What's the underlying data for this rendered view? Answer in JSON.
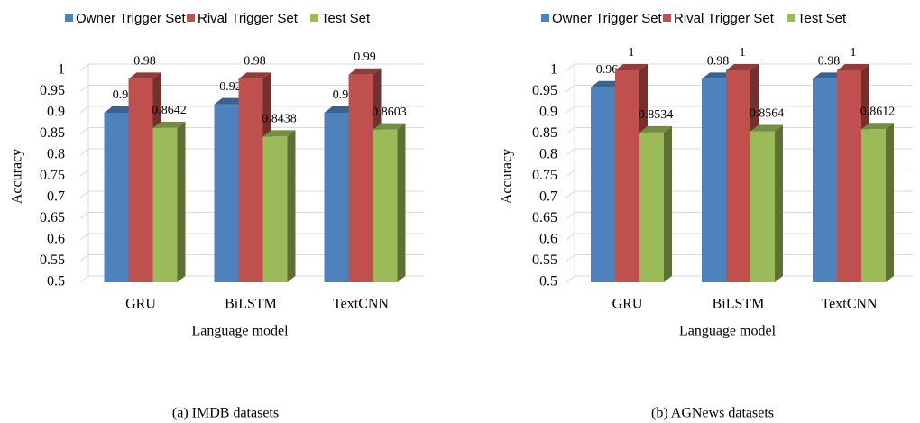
{
  "chart_data": [
    {
      "type": "bar",
      "caption": "(a) IMDB datasets",
      "ylabel": "Accuracy",
      "xlabel": "Language model",
      "categories": [
        "GRU",
        "BiLSTM",
        "TextCNN"
      ],
      "series": [
        {
          "name": "Owner Trigger Set",
          "color": "#4f81bd",
          "values": [
            0.9,
            0.92,
            0.9
          ]
        },
        {
          "name": "Rival Trigger Set",
          "color": "#c0504d",
          "values": [
            0.98,
            0.98,
            0.99
          ]
        },
        {
          "name": "Test Set",
          "color": "#9bbb59",
          "values": [
            0.8642,
            0.8438,
            0.8603
          ]
        }
      ],
      "ylim": [
        0.5,
        1
      ],
      "yticks": [
        0.5,
        0.55,
        0.6,
        0.65,
        0.7,
        0.75,
        0.8,
        0.85,
        0.9,
        0.95,
        1
      ],
      "grid": true,
      "legend": "top"
    },
    {
      "type": "bar",
      "caption": "(b) AGNews datasets",
      "ylabel": "Accuracy",
      "xlabel": "Language model",
      "categories": [
        "GRU",
        "BiLSTM",
        "TextCNN"
      ],
      "series": [
        {
          "name": "Owner Trigger Set",
          "color": "#4f81bd",
          "values": [
            0.96,
            0.98,
            0.98
          ]
        },
        {
          "name": "Rival Trigger Set",
          "color": "#c0504d",
          "values": [
            1,
            1,
            1
          ]
        },
        {
          "name": "Test Set",
          "color": "#9bbb59",
          "values": [
            0.8534,
            0.8564,
            0.8612
          ]
        }
      ],
      "ylim": [
        0.5,
        1
      ],
      "yticks": [
        0.5,
        0.55,
        0.6,
        0.65,
        0.7,
        0.75,
        0.8,
        0.85,
        0.9,
        0.95,
        1
      ],
      "grid": true,
      "legend": "top"
    }
  ]
}
